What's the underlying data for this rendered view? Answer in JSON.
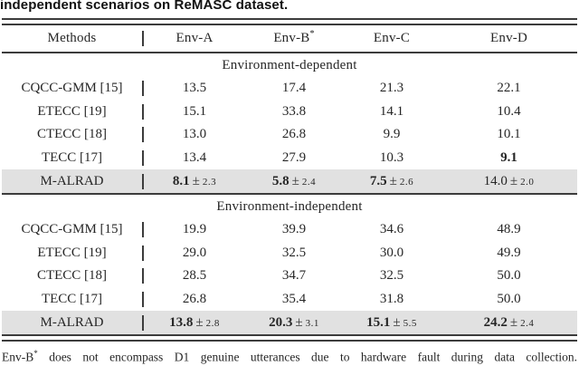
{
  "caption": "independent scenarios on ReMASC dataset.",
  "colors": {
    "highlight_row": "#e1e1e1",
    "text": "#262626",
    "rule": "#3c3c3c"
  },
  "table": {
    "methods_header": "Methods",
    "columns": [
      {
        "label": "Env-A",
        "sup": ""
      },
      {
        "label": "Env-B",
        "sup": "*"
      },
      {
        "label": "Env-C",
        "sup": ""
      },
      {
        "label": "Env-D",
        "sup": ""
      }
    ],
    "sections": [
      {
        "title": "Environment-dependent",
        "rows": [
          {
            "method": "CQCC-GMM [15]",
            "highlight": false,
            "cells": [
              {
                "v": "13.5",
                "bold": false
              },
              {
                "v": "17.4",
                "bold": false
              },
              {
                "v": "21.3",
                "bold": false
              },
              {
                "v": "22.1",
                "bold": false
              }
            ]
          },
          {
            "method": "ETECC [19]",
            "highlight": false,
            "cells": [
              {
                "v": "15.1",
                "bold": false
              },
              {
                "v": "33.8",
                "bold": false
              },
              {
                "v": "14.1",
                "bold": false
              },
              {
                "v": "10.4",
                "bold": false
              }
            ]
          },
          {
            "method": "CTECC [18]",
            "highlight": false,
            "cells": [
              {
                "v": "13.0",
                "bold": false
              },
              {
                "v": "26.8",
                "bold": false
              },
              {
                "v": "9.9",
                "bold": false
              },
              {
                "v": "10.1",
                "bold": false
              }
            ]
          },
          {
            "method": "TECC [17]",
            "highlight": false,
            "cells": [
              {
                "v": "13.4",
                "bold": false
              },
              {
                "v": "27.9",
                "bold": false
              },
              {
                "v": "10.3",
                "bold": false
              },
              {
                "v": "9.1",
                "bold": true
              }
            ]
          },
          {
            "method": "M-ALRAD",
            "highlight": true,
            "cells": [
              {
                "v": "8.1",
                "pm": "2.3",
                "bold": true
              },
              {
                "v": "5.8",
                "pm": "2.4",
                "bold": true
              },
              {
                "v": "7.5",
                "pm": "2.6",
                "bold": true
              },
              {
                "v": "14.0",
                "pm": "2.0",
                "bold": false
              }
            ]
          }
        ]
      },
      {
        "title": "Environment-independent",
        "rows": [
          {
            "method": "CQCC-GMM [15]",
            "highlight": false,
            "cells": [
              {
                "v": "19.9",
                "bold": false
              },
              {
                "v": "39.9",
                "bold": false
              },
              {
                "v": "34.6",
                "bold": false
              },
              {
                "v": "48.9",
                "bold": false
              }
            ]
          },
          {
            "method": "ETECC [19]",
            "highlight": false,
            "cells": [
              {
                "v": "29.0",
                "bold": false
              },
              {
                "v": "32.5",
                "bold": false
              },
              {
                "v": "30.0",
                "bold": false
              },
              {
                "v": "49.9",
                "bold": false
              }
            ]
          },
          {
            "method": "CTECC [18]",
            "highlight": false,
            "cells": [
              {
                "v": "28.5",
                "bold": false
              },
              {
                "v": "34.7",
                "bold": false
              },
              {
                "v": "32.5",
                "bold": false
              },
              {
                "v": "50.0",
                "bold": false
              }
            ]
          },
          {
            "method": "TECC [17]",
            "highlight": false,
            "cells": [
              {
                "v": "26.8",
                "bold": false
              },
              {
                "v": "35.4",
                "bold": false
              },
              {
                "v": "31.8",
                "bold": false
              },
              {
                "v": "50.0",
                "bold": false
              }
            ]
          },
          {
            "method": "M-ALRAD",
            "highlight": true,
            "cells": [
              {
                "v": "13.8",
                "pm": "2.8",
                "bold": true
              },
              {
                "v": "20.3",
                "pm": "3.1",
                "bold": true
              },
              {
                "v": "15.1",
                "pm": "5.5",
                "bold": true
              },
              {
                "v": "24.2",
                "pm": "2.4",
                "bold": true
              }
            ]
          }
        ]
      }
    ]
  },
  "footnote": {
    "prefix": "Env-B",
    "sup": "*",
    "rest": " does not encompass D1 genuine utterances due to hardware fault during data collection."
  }
}
